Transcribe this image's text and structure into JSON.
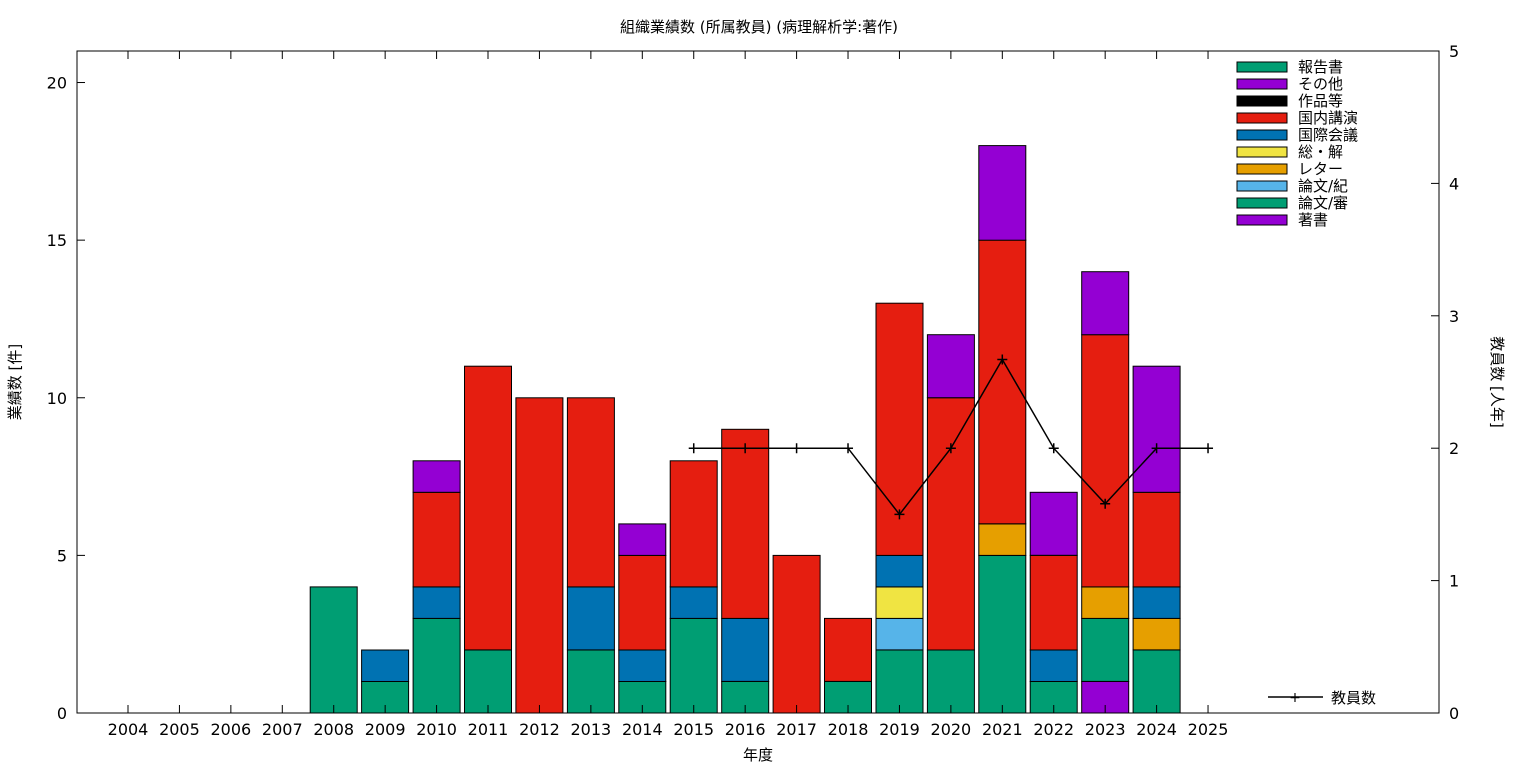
{
  "chart_data": {
    "type": "bar",
    "stacked": true,
    "title": "組織業績数 (所属教員) (病理解析学:著作)",
    "xlabel": "年度",
    "ylabel": "業績数 [件]",
    "y2label": "教員数 [人年]",
    "ylim": [
      0,
      21
    ],
    "y2lim": [
      0,
      5
    ],
    "yticks": [
      0,
      5,
      10,
      15,
      20
    ],
    "y2ticks": [
      0,
      1,
      2,
      3,
      4,
      5
    ],
    "categories": [
      "2004",
      "2005",
      "2006",
      "2007",
      "2008",
      "2009",
      "2010",
      "2011",
      "2012",
      "2013",
      "2014",
      "2015",
      "2016",
      "2017",
      "2018",
      "2019",
      "2020",
      "2021",
      "2022",
      "2023",
      "2024",
      "2025"
    ],
    "stack_order": [
      "著書",
      "論文/審",
      "論文/紀",
      "レター",
      "総・解",
      "国際会議",
      "国内講演",
      "作品等",
      "その他",
      "報告書"
    ],
    "series": [
      {
        "name": "報告書",
        "color": "#009e73",
        "values": [
          0,
          0,
          0,
          0,
          4,
          0,
          0,
          0,
          0,
          0,
          0,
          0,
          0,
          0,
          0,
          0,
          0,
          0,
          0,
          0,
          0,
          0
        ]
      },
      {
        "name": "その他",
        "color": "#9400d3",
        "values": [
          0,
          0,
          0,
          0,
          0,
          0,
          1,
          0,
          0,
          0,
          1,
          0,
          0,
          0,
          0,
          0,
          2,
          3,
          2,
          2,
          4,
          0
        ]
      },
      {
        "name": "作品等",
        "color": "#000000",
        "values": [
          0,
          0,
          0,
          0,
          0,
          0,
          0,
          0,
          0,
          0,
          0,
          0,
          0,
          0,
          0,
          0,
          0,
          0,
          0,
          0,
          0,
          0
        ]
      },
      {
        "name": "国内講演",
        "color": "#e51e10",
        "values": [
          0,
          0,
          0,
          0,
          0,
          0,
          3,
          9,
          10,
          6,
          3,
          4,
          6,
          5,
          2,
          8,
          8,
          9,
          3,
          8,
          3,
          0
        ]
      },
      {
        "name": "国際会議",
        "color": "#0072b2",
        "values": [
          0,
          0,
          0,
          0,
          0,
          1,
          1,
          0,
          0,
          2,
          1,
          1,
          2,
          0,
          0,
          1,
          0,
          0,
          1,
          0,
          1,
          0
        ]
      },
      {
        "name": "総・解",
        "color": "#f0e442",
        "values": [
          0,
          0,
          0,
          0,
          0,
          0,
          0,
          0,
          0,
          0,
          0,
          0,
          0,
          0,
          0,
          1,
          0,
          0,
          0,
          0,
          0,
          0
        ]
      },
      {
        "name": "レター",
        "color": "#e69f00",
        "values": [
          0,
          0,
          0,
          0,
          0,
          0,
          0,
          0,
          0,
          0,
          0,
          0,
          0,
          0,
          0,
          0,
          0,
          1,
          0,
          1,
          1,
          0
        ]
      },
      {
        "name": "論文/紀",
        "color": "#56b4e9",
        "values": [
          0,
          0,
          0,
          0,
          0,
          0,
          0,
          0,
          0,
          0,
          0,
          0,
          0,
          0,
          0,
          1,
          0,
          0,
          0,
          0,
          0,
          0
        ]
      },
      {
        "name": "論文/審",
        "color": "#009e73",
        "values": [
          0,
          0,
          0,
          0,
          0,
          1,
          3,
          2,
          0,
          2,
          1,
          3,
          1,
          0,
          1,
          2,
          2,
          5,
          1,
          2,
          2,
          0
        ]
      },
      {
        "name": "著書",
        "color": "#9400d3",
        "values": [
          0,
          0,
          0,
          0,
          0,
          0,
          0,
          0,
          0,
          0,
          0,
          0,
          0,
          0,
          0,
          0,
          0,
          0,
          0,
          1,
          0,
          0
        ]
      }
    ],
    "line_series": {
      "name": "教員数",
      "axis": "y2",
      "color": "#000000",
      "x": [
        "2015",
        "2016",
        "2017",
        "2018",
        "2019",
        "2020",
        "2021",
        "2022",
        "2023",
        "2024",
        "2025"
      ],
      "values": [
        2,
        2,
        2,
        2,
        1.5,
        2,
        2.67,
        2,
        1.58,
        2,
        2
      ]
    },
    "legend_position": "top-right",
    "line_legend_position": "bottom-right",
    "grid": false
  }
}
